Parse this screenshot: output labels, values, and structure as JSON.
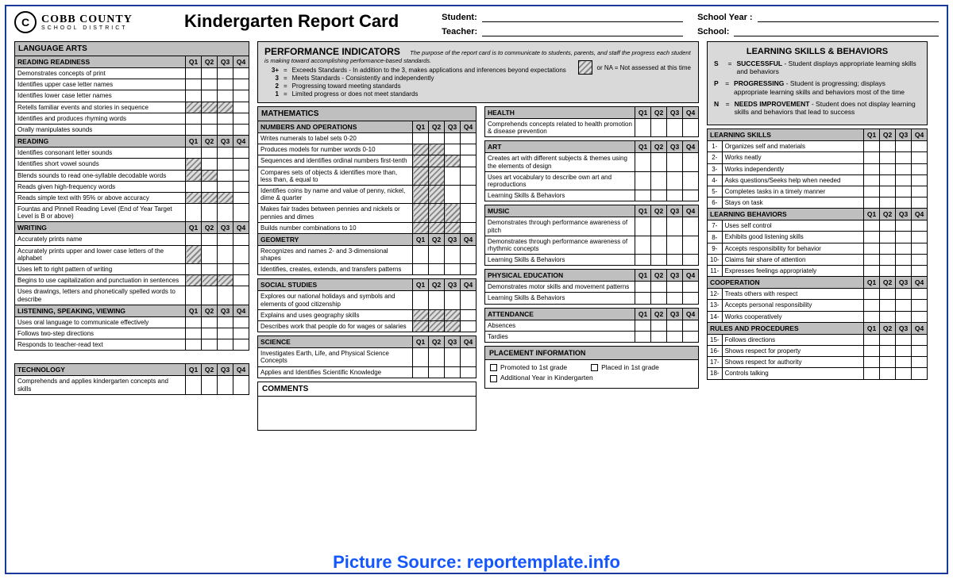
{
  "colors": {
    "border": "#1b3a9b",
    "grey_header": "#bfbfbf",
    "grey_light": "#d9d9d9",
    "hatch_a": "#888888",
    "hatch_b": "#dddddd",
    "watermark": "#1557ff"
  },
  "logo": {
    "letter": "C",
    "line1": "COBB COUNTY",
    "line2": "SCHOOL DISTRICT"
  },
  "title": "Kindergarten Report Card",
  "fields": {
    "student": "Student:",
    "year": "School Year :",
    "teacher": "Teacher:",
    "school": "School:"
  },
  "quarters": [
    "Q1",
    "Q2",
    "Q3",
    "Q4"
  ],
  "perf": {
    "title": "PERFORMANCE INDICATORS",
    "sub": "The purpose of the report card is to communicate to students, parents, and staff the progress each student is making toward accomplishing performance-based standards.",
    "defs": [
      {
        "k": "3+",
        "t": "Exceeds Standards - In addition to the 3, makes applications and inferences beyond expectations"
      },
      {
        "k": "3",
        "t": "Meets Standards - Consistently and independently"
      },
      {
        "k": "2",
        "t": "Progressing toward meeting standards"
      },
      {
        "k": "1",
        "t": "Limited progress or does not meet standards"
      }
    ],
    "na": "or NA = Not assessed at this time"
  },
  "col1": {
    "title": "LANGUAGE ARTS",
    "groups": [
      {
        "name": "READING READINESS",
        "rows": [
          {
            "t": "Demonstrates concepts of print",
            "h": []
          },
          {
            "t": "Identifies upper case letter names",
            "h": []
          },
          {
            "t": "Identifies lower case letter names",
            "h": []
          },
          {
            "t": "Retells familiar events and stories in sequence",
            "h": [
              0,
              1,
              2
            ]
          },
          {
            "t": "Identifies and produces rhyming words",
            "h": []
          },
          {
            "t": "Orally manipulates sounds",
            "h": []
          }
        ]
      },
      {
        "name": "READING",
        "rows": [
          {
            "t": "Identifies consonant letter sounds",
            "h": []
          },
          {
            "t": "Identifies short vowel sounds",
            "h": [
              0
            ]
          },
          {
            "t": "Blends sounds to read one-syllable decodable words",
            "h": [
              0,
              1
            ]
          },
          {
            "t": "Reads given high-frequency words",
            "h": []
          },
          {
            "t": "Reads simple text with 95% or above accuracy",
            "h": [
              0,
              1,
              2
            ]
          },
          {
            "t": "Fountas and Pinnell Reading Level (End of Year Target Level is B or above)",
            "h": []
          }
        ]
      },
      {
        "name": "WRITING",
        "rows": [
          {
            "t": "Accurately prints name",
            "h": []
          },
          {
            "t": "Accurately prints upper and lower case letters of the alphabet",
            "h": [
              0
            ]
          },
          {
            "t": "Uses left to right pattern of writing",
            "h": []
          },
          {
            "t": "Begins to use capitalization and punctuation in sentences",
            "h": [
              0,
              1,
              2
            ]
          },
          {
            "t": "Uses drawings, letters and phonetically spelled words to describe",
            "h": []
          }
        ]
      },
      {
        "name": "LISTENING, SPEAKING, VIEWING",
        "rows": [
          {
            "t": "Uses oral language to communicate effectively",
            "h": []
          },
          {
            "t": "Follows two-step directions",
            "h": []
          },
          {
            "t": "Responds to teacher-read text",
            "h": []
          }
        ]
      }
    ],
    "tech": {
      "title": "TECHNOLOGY",
      "rows": [
        {
          "t": "Comprehends and applies kindergarten concepts and skills",
          "h": []
        }
      ]
    }
  },
  "col2": {
    "math_title": "MATHEMATICS",
    "groups": [
      {
        "name": "NUMBERS AND OPERATIONS",
        "rows": [
          {
            "t": "Writes numerals to label sets 0-20",
            "h": []
          },
          {
            "t": "Produces models for number words 0-10",
            "h": [
              0,
              1
            ]
          },
          {
            "t": "Sequences and identifies ordinal numbers first-tenth",
            "h": [
              0,
              1,
              2
            ]
          },
          {
            "t": "Compares sets of objects & identifies more than, less than, & equal to",
            "h": [
              0,
              1
            ]
          },
          {
            "t": "Identifies coins by name and value of penny, nickel, dime & quarter",
            "h": [
              0,
              1
            ]
          },
          {
            "t": "Makes fair trades between pennies and nickels or pennies and dimes",
            "h": [
              0,
              1,
              2
            ]
          },
          {
            "t": "Builds number combinations to 10",
            "h": [
              0,
              1,
              2
            ]
          }
        ]
      },
      {
        "name": "GEOMETRY",
        "rows": [
          {
            "t": "Recognizes and names 2- and 3-dimensional shapes",
            "h": []
          },
          {
            "t": "Identifies, creates, extends, and transfers patterns",
            "h": []
          }
        ]
      }
    ],
    "ss": {
      "title": "SOCIAL STUDIES",
      "rows": [
        {
          "t": "Explores our national holidays and symbols and elements of good citizenship",
          "h": []
        },
        {
          "t": "Explains and uses geography skills",
          "h": [
            0,
            1,
            2
          ]
        },
        {
          "t": "Describes work that people do for wages or salaries",
          "h": [
            0,
            1,
            2
          ]
        }
      ]
    },
    "sci": {
      "title": "SCIENCE",
      "rows": [
        {
          "t": "Investigates Earth, Life, and Physical Science Concepts",
          "h": []
        },
        {
          "t": "Applies and Identifies Scientific Knowledge",
          "h": []
        }
      ]
    },
    "comments": "COMMENTS"
  },
  "col3": {
    "health": {
      "title": "HEALTH",
      "rows": [
        {
          "t": "Comprehends concepts related to health promotion & disease prevention",
          "h": []
        }
      ]
    },
    "art": {
      "title": "ART",
      "rows": [
        {
          "t": "Creates art with different subjects & themes using the elements of design",
          "h": []
        },
        {
          "t": "Uses art vocabulary to describe own art and reproductions",
          "h": []
        },
        {
          "t": "Learning Skills & Behaviors",
          "h": []
        }
      ]
    },
    "music": {
      "title": "MUSIC",
      "rows": [
        {
          "t": "Demonstrates through performance awareness of pitch",
          "h": []
        },
        {
          "t": "Demonstrates through performance awareness of rhythmic concepts",
          "h": []
        },
        {
          "t": "Learning Skills & Behaviors",
          "h": []
        }
      ]
    },
    "pe": {
      "title": "PHYSICAL EDUCATION",
      "rows": [
        {
          "t": "Demonstrates motor skills and movement patterns",
          "h": []
        },
        {
          "t": "Learning Skills & Behaviors",
          "h": []
        }
      ]
    },
    "att": {
      "title": "ATTENDANCE",
      "rows": [
        {
          "t": "Absences",
          "h": []
        },
        {
          "t": "Tardies",
          "h": []
        }
      ]
    },
    "placement": {
      "title": "PLACEMENT INFORMATION",
      "opts": [
        "Promoted to 1st grade",
        "Placed in 1st grade",
        "Additional Year in Kindergarten"
      ]
    }
  },
  "col4": {
    "behav_title": "LEARNING SKILLS & BEHAVIORS",
    "defs": [
      {
        "k": "S",
        "t1": "SUCCESSFUL",
        "t2": " - Student displays appropriate learning skills and behaviors"
      },
      {
        "k": "P",
        "t1": "PROGRESSING",
        "t2": " - Student is progressing; displays appropriate learning skills and behaviors most of the time"
      },
      {
        "k": "N",
        "t1": "NEEDS IMPROVEMENT",
        "t2": " - Student does not display learning skills and behaviors that lead to success"
      }
    ],
    "groups": [
      {
        "name": "LEARNING SKILLS",
        "start": 1,
        "rows": [
          "Organizes self and materials",
          "Works neatly",
          "Works independently",
          "Asks questions/Seeks help when needed",
          "Completes tasks in a timely manner",
          "Stays on task"
        ]
      },
      {
        "name": "LEARNING BEHAVIORS",
        "start": 7,
        "rows": [
          "Uses self control",
          "Exhibits good listening skills",
          "Accepts responsibility for behavior",
          "Claims fair share of attention",
          "Expresses feelings appropriately"
        ]
      },
      {
        "name": "COOPERATION",
        "start": 12,
        "rows": [
          "Treats others with respect",
          "Accepts personal responsibility",
          "Works cooperatively"
        ]
      },
      {
        "name": "RULES AND PROCEDURES",
        "start": 15,
        "rows": [
          "Follows directions",
          "Shows respect for property",
          "Shows respect for authority",
          "Controls talking"
        ]
      }
    ]
  },
  "watermark": "Picture Source: reportemplate.info"
}
